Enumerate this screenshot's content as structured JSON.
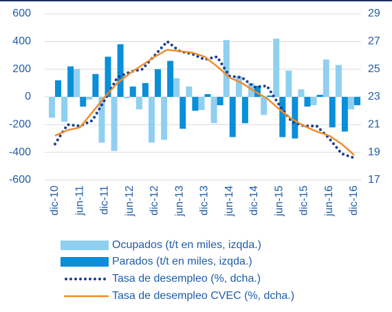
{
  "chart_data": {
    "type": "bar",
    "categories": [
      "dic-10",
      null,
      "jun-11",
      null,
      "dic-11",
      null,
      "jun-12",
      null,
      "dic-12",
      null,
      "jun-13",
      null,
      "dic-13",
      null,
      "jun-14",
      null,
      "dic-14",
      null,
      "jun-15",
      null,
      "dic-15",
      null,
      "jun-16",
      null,
      "dic-16"
    ],
    "series": [
      {
        "name": "Ocupados (t/t en miles, izqda.)",
        "type": "bar",
        "axis": "y",
        "color": "#8fd0f0",
        "values": [
          -150,
          -180,
          200,
          -20,
          -330,
          -390,
          -10,
          -90,
          -330,
          -310,
          135,
          75,
          -95,
          -190,
          410,
          150,
          100,
          -130,
          420,
          190,
          55,
          -60,
          270,
          230,
          -90
        ]
      },
      {
        "name": "Parados (t/t en miles, izqda.)",
        "type": "bar",
        "axis": "y",
        "color": "#0a8fd8",
        "values": [
          120,
          220,
          -70,
          165,
          290,
          380,
          75,
          100,
          200,
          260,
          -230,
          -100,
          20,
          -60,
          -290,
          -190,
          80,
          10,
          -290,
          -300,
          -70,
          15,
          -220,
          -250,
          -60
        ]
      },
      {
        "name": "Tasa de desempleo (%, dcha.)",
        "type": "line",
        "dash": "dotted",
        "axis": "y2",
        "color": "#1a3c8c",
        "values": [
          19.6,
          21.0,
          20.9,
          21.3,
          22.8,
          24.4,
          24.8,
          25.0,
          26.0,
          27.0,
          26.3,
          26.1,
          25.7,
          25.9,
          24.5,
          24.4,
          23.7,
          23.8,
          22.4,
          21.2,
          20.9,
          20.9,
          20.0,
          18.9,
          18.6
        ]
      },
      {
        "name": "Tasa de desempleo CVEC (%, dcha.)",
        "type": "line",
        "dash": "solid",
        "axis": "y2",
        "color": "#f28c28",
        "values": [
          20.2,
          20.6,
          20.8,
          21.9,
          23.0,
          24.0,
          24.7,
          25.3,
          25.9,
          26.4,
          26.3,
          26.2,
          25.9,
          25.2,
          24.4,
          24.0,
          23.4,
          22.9,
          22.1,
          21.4,
          20.9,
          20.5,
          20.2,
          19.6,
          18.8
        ]
      }
    ],
    "ylim": [
      -600,
      600
    ],
    "yticks": [
      -600,
      -400,
      -200,
      0,
      200,
      400,
      600
    ],
    "y2lim": [
      17,
      29
    ],
    "y2ticks": [
      17,
      19,
      21,
      23,
      25,
      27,
      29
    ],
    "grid": true
  }
}
